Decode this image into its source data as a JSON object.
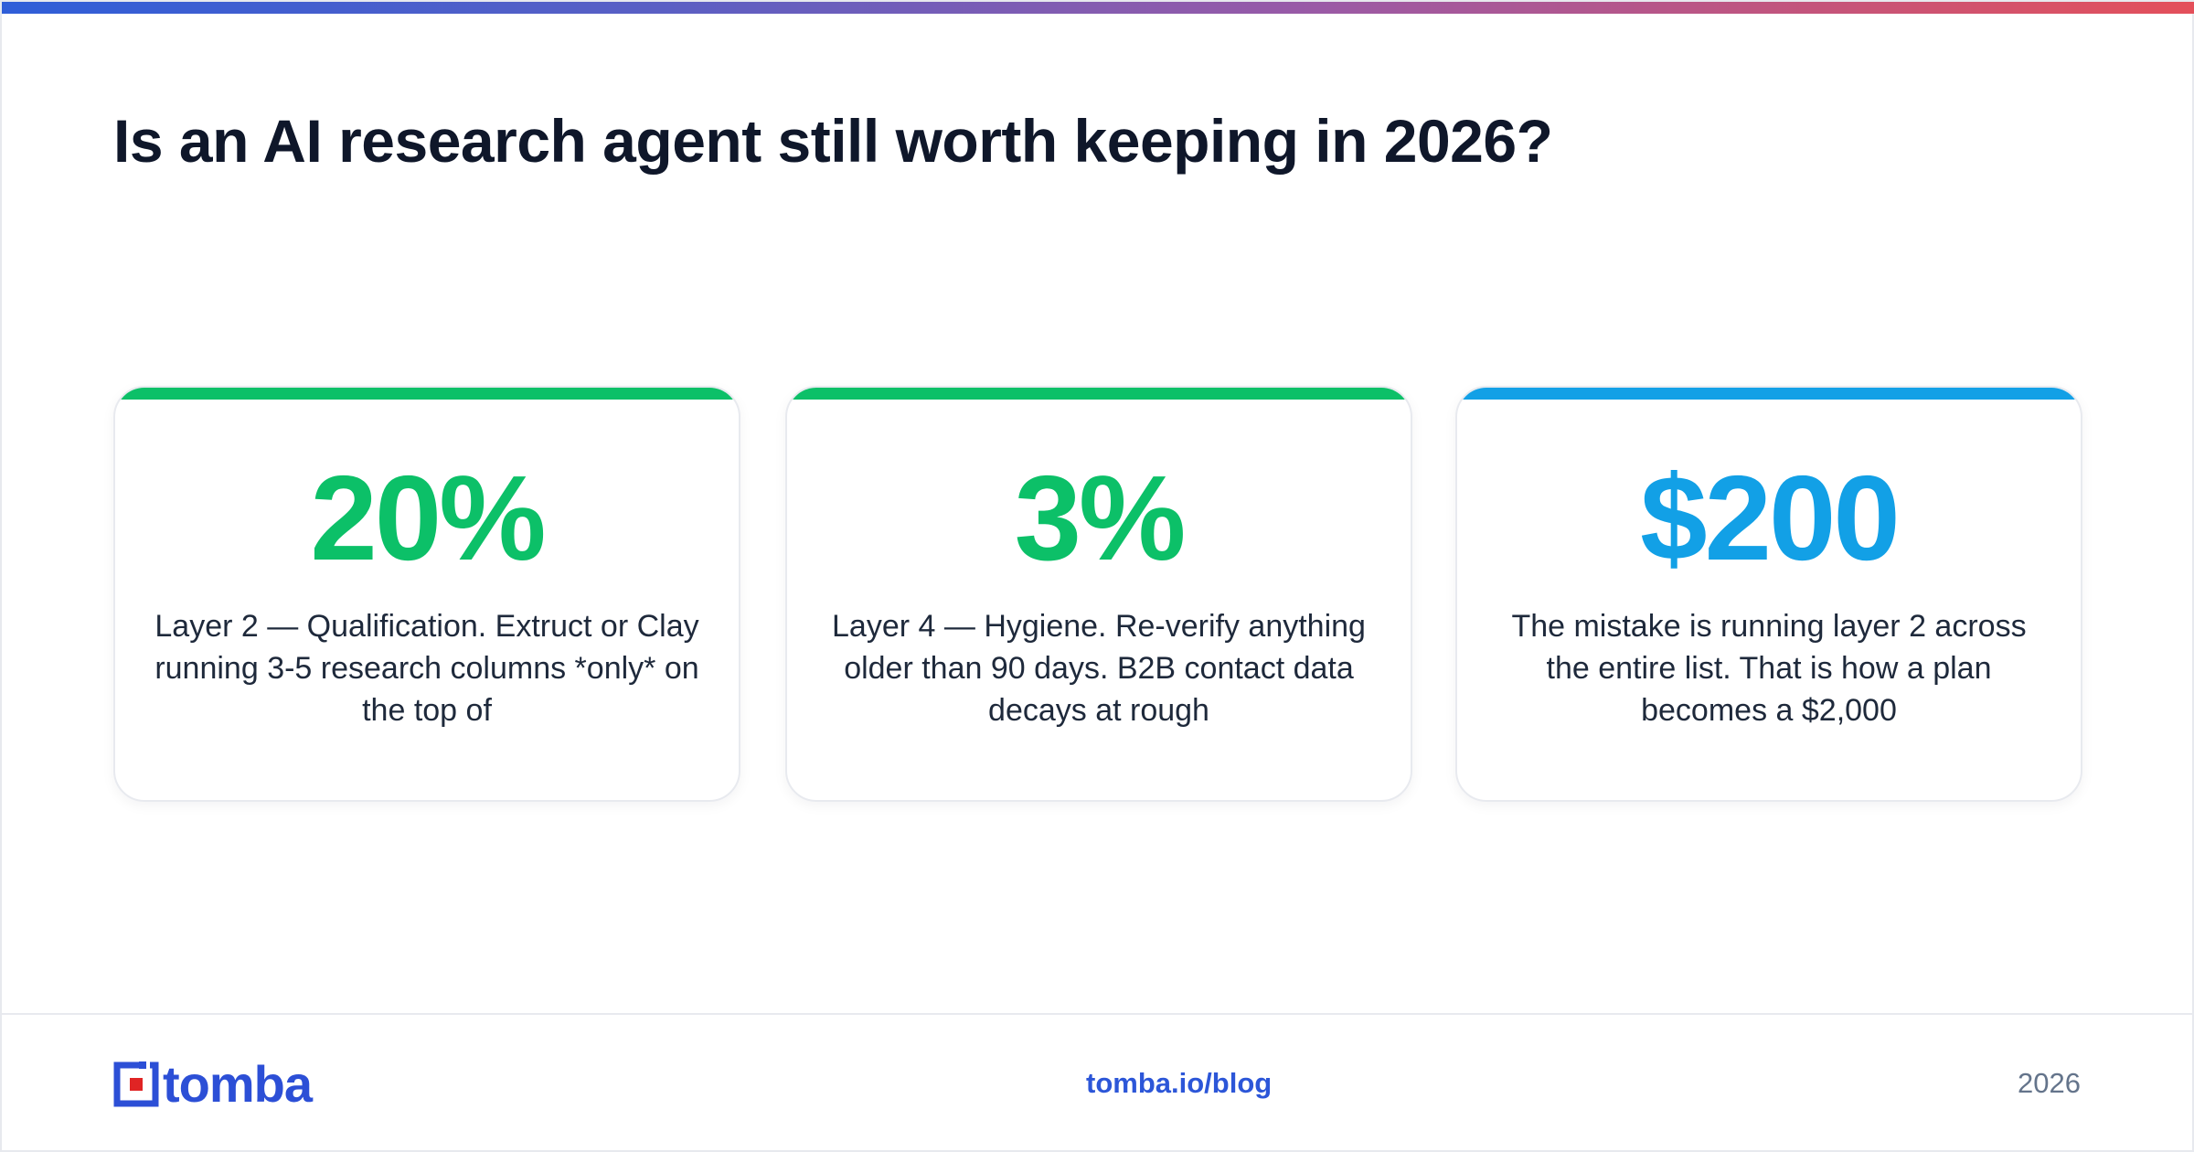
{
  "header": {
    "title": "Is an AI research agent still worth keeping in 2026?"
  },
  "colors": {
    "green": "#0cc068",
    "blue": "#12a0e6",
    "brand_blue": "#2c4fd6",
    "brand_red": "#e02424",
    "title": "#0f172a"
  },
  "cards": [
    {
      "stat": "20%",
      "description": "Layer 2 — Qualification. Extruct or Clay running 3-5 research columns *only* on the top of",
      "accent": "green"
    },
    {
      "stat": "3%",
      "description": "Layer 4 — Hygiene. Re-verify anything older than 90 days. B2B contact data decays at rough",
      "accent": "green"
    },
    {
      "stat": "$200",
      "description": "The mistake is running layer 2 across the entire list. That is how a plan becomes a $2,000",
      "accent": "blue"
    }
  ],
  "footer": {
    "logo_text": "tomba",
    "link": "tomba.io/blog",
    "year": "2026"
  }
}
